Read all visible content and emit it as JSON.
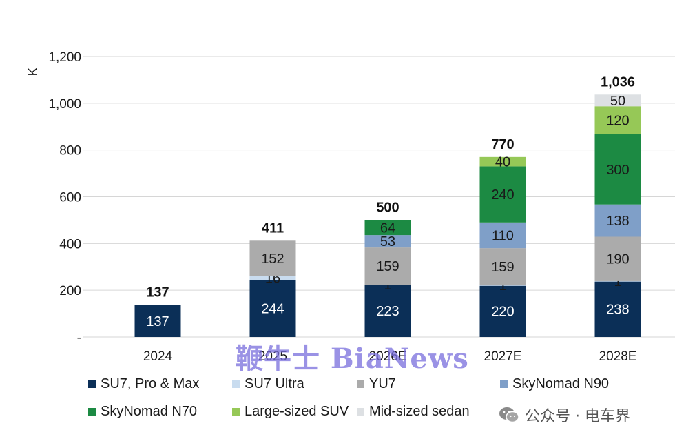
{
  "chart_data": {
    "type": "bar",
    "stacked": true,
    "ylabel": "K",
    "ylim": [
      0,
      1200
    ],
    "yticks": [
      0,
      200,
      400,
      600,
      800,
      1000,
      1200
    ],
    "ytick_labels": [
      "-",
      "200",
      "400",
      "600",
      "800",
      "1,000",
      "1,200"
    ],
    "grid": true,
    "legend_position": "bottom",
    "categories": [
      "2024",
      "2025",
      "2026E",
      "2027E",
      "2028E"
    ],
    "totals": [
      137,
      411,
      500,
      770,
      1036
    ],
    "total_labels": [
      "137",
      "411",
      "500",
      "770",
      "1,036"
    ],
    "series": [
      {
        "name": "SU7, Pro & Max",
        "color": "#0b2f57",
        "label_color": "#ffffff",
        "values": [
          137,
          244,
          223,
          220,
          238
        ]
      },
      {
        "name": "SU7 Ultra",
        "color": "#c9dcef",
        "label_color": "#1a1a1a",
        "values": [
          0,
          16,
          1,
          1,
          1
        ]
      },
      {
        "name": "YU7",
        "color": "#ababab",
        "label_color": "#1a1a1a",
        "values": [
          0,
          152,
          159,
          159,
          190
        ]
      },
      {
        "name": "SkyNomad N90",
        "color": "#7f9fc8",
        "label_color": "#1a1a1a",
        "values": [
          0,
          0,
          53,
          110,
          138
        ]
      },
      {
        "name": "SkyNomad N70",
        "color": "#1c8a43",
        "label_color": "#1a1a1a",
        "values": [
          0,
          0,
          64,
          240,
          300
        ]
      },
      {
        "name": "Large-sized SUV",
        "color": "#96c857",
        "label_color": "#1a1a1a",
        "values": [
          0,
          0,
          0,
          40,
          120
        ]
      },
      {
        "name": "Mid-sized sedan",
        "color": "#dde0e3",
        "label_color": "#1a1a1a",
        "values": [
          0,
          0,
          0,
          0,
          50
        ]
      }
    ]
  },
  "watermark": "鞭牛士 BiaNews",
  "wechat": {
    "account": "公众号 · 电车界",
    "icon": "wechat-icon"
  }
}
